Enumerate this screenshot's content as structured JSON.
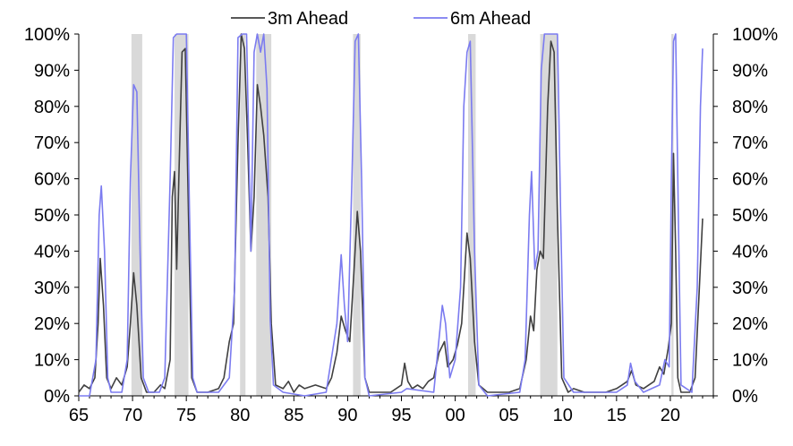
{
  "chart_data": {
    "type": "line",
    "title": "",
    "xlabel": "",
    "ylabel": "",
    "x_ticks": [
      "65",
      "70",
      "75",
      "80",
      "85",
      "90",
      "95",
      "00",
      "05",
      "10",
      "15",
      "20"
    ],
    "x_range_years": [
      1965,
      2024
    ],
    "y_ticks": [
      "0%",
      "10%",
      "20%",
      "30%",
      "40%",
      "50%",
      "60%",
      "70%",
      "80%",
      "90%",
      "100%"
    ],
    "ylim": [
      0,
      100
    ],
    "grid": false,
    "legend_position": "top",
    "recession_periods": [
      [
        1969.9,
        1970.9
      ],
      [
        1973.9,
        1975.2
      ],
      [
        1980.0,
        1980.5
      ],
      [
        1981.5,
        1982.9
      ],
      [
        1990.5,
        1991.2
      ],
      [
        2001.2,
        2001.9
      ],
      [
        2007.9,
        2009.5
      ],
      [
        2020.1,
        2020.3
      ]
    ],
    "series": [
      {
        "name": "3m Ahead",
        "color": "#404040",
        "points": [
          [
            1965.0,
            1
          ],
          [
            1965.5,
            3
          ],
          [
            1966.0,
            2
          ],
          [
            1966.5,
            5
          ],
          [
            1966.8,
            20
          ],
          [
            1967.0,
            38
          ],
          [
            1967.3,
            25
          ],
          [
            1967.6,
            5
          ],
          [
            1968.0,
            2
          ],
          [
            1968.5,
            5
          ],
          [
            1969.0,
            3
          ],
          [
            1969.5,
            8
          ],
          [
            1969.8,
            20
          ],
          [
            1970.1,
            34
          ],
          [
            1970.4,
            25
          ],
          [
            1970.8,
            5
          ],
          [
            1971.3,
            1
          ],
          [
            1972.0,
            1
          ],
          [
            1972.6,
            3
          ],
          [
            1973.0,
            2
          ],
          [
            1973.5,
            10
          ],
          [
            1973.7,
            55
          ],
          [
            1973.9,
            62
          ],
          [
            1974.1,
            35
          ],
          [
            1974.3,
            60
          ],
          [
            1974.6,
            95
          ],
          [
            1974.9,
            96
          ],
          [
            1975.2,
            50
          ],
          [
            1975.5,
            5
          ],
          [
            1976.0,
            1
          ],
          [
            1977.0,
            1
          ],
          [
            1978.0,
            2
          ],
          [
            1978.5,
            5
          ],
          [
            1979.0,
            15
          ],
          [
            1979.4,
            20
          ],
          [
            1979.8,
            70
          ],
          [
            1980.1,
            100
          ],
          [
            1980.4,
            96
          ],
          [
            1980.7,
            70
          ],
          [
            1981.0,
            40
          ],
          [
            1981.3,
            55
          ],
          [
            1981.6,
            86
          ],
          [
            1981.9,
            80
          ],
          [
            1982.2,
            72
          ],
          [
            1982.6,
            55
          ],
          [
            1982.9,
            20
          ],
          [
            1983.3,
            3
          ],
          [
            1984.0,
            2
          ],
          [
            1984.5,
            4
          ],
          [
            1985.0,
            1
          ],
          [
            1985.5,
            3
          ],
          [
            1986.0,
            2
          ],
          [
            1987.0,
            3
          ],
          [
            1988.0,
            2
          ],
          [
            1988.5,
            5
          ],
          [
            1989.0,
            12
          ],
          [
            1989.4,
            22
          ],
          [
            1989.8,
            18
          ],
          [
            1990.2,
            15
          ],
          [
            1990.6,
            35
          ],
          [
            1990.9,
            51
          ],
          [
            1991.2,
            40
          ],
          [
            1991.6,
            5
          ],
          [
            1992.0,
            1
          ],
          [
            1993.0,
            1
          ],
          [
            1994.0,
            1
          ],
          [
            1995.0,
            3
          ],
          [
            1995.3,
            9
          ],
          [
            1995.6,
            4
          ],
          [
            1996.0,
            2
          ],
          [
            1996.5,
            3
          ],
          [
            1997.0,
            2
          ],
          [
            1997.5,
            4
          ],
          [
            1998.0,
            5
          ],
          [
            1998.5,
            12
          ],
          [
            1999.0,
            15
          ],
          [
            1999.3,
            8
          ],
          [
            1999.8,
            10
          ],
          [
            2000.2,
            14
          ],
          [
            2000.6,
            20
          ],
          [
            2000.9,
            35
          ],
          [
            2001.1,
            45
          ],
          [
            2001.4,
            38
          ],
          [
            2001.8,
            15
          ],
          [
            2002.2,
            3
          ],
          [
            2003.0,
            1
          ],
          [
            2004.0,
            1
          ],
          [
            2005.0,
            1
          ],
          [
            2006.0,
            2
          ],
          [
            2006.6,
            10
          ],
          [
            2007.0,
            22
          ],
          [
            2007.3,
            18
          ],
          [
            2007.6,
            35
          ],
          [
            2007.9,
            40
          ],
          [
            2008.2,
            38
          ],
          [
            2008.6,
            80
          ],
          [
            2008.9,
            98
          ],
          [
            2009.2,
            95
          ],
          [
            2009.5,
            50
          ],
          [
            2009.9,
            5
          ],
          [
            2010.5,
            1
          ],
          [
            2011.0,
            2
          ],
          [
            2012.0,
            1
          ],
          [
            2013.0,
            1
          ],
          [
            2014.0,
            1
          ],
          [
            2015.0,
            2
          ],
          [
            2015.5,
            3
          ],
          [
            2016.0,
            4
          ],
          [
            2016.4,
            7
          ],
          [
            2016.8,
            3
          ],
          [
            2017.5,
            2
          ],
          [
            2018.5,
            4
          ],
          [
            2019.0,
            8
          ],
          [
            2019.4,
            6
          ],
          [
            2019.8,
            13
          ],
          [
            2020.1,
            20
          ],
          [
            2020.3,
            67
          ],
          [
            2020.5,
            40
          ],
          [
            2020.7,
            5
          ],
          [
            2021.0,
            1
          ],
          [
            2021.8,
            1
          ],
          [
            2022.3,
            5
          ],
          [
            2022.7,
            30
          ],
          [
            2023.0,
            49
          ]
        ]
      },
      {
        "name": "6m Ahead",
        "color": "#7b7bf0",
        "points": [
          [
            1965.0,
            0
          ],
          [
            1966.0,
            0
          ],
          [
            1966.6,
            10
          ],
          [
            1966.9,
            50
          ],
          [
            1967.1,
            58
          ],
          [
            1967.4,
            40
          ],
          [
            1967.7,
            5
          ],
          [
            1968.0,
            1
          ],
          [
            1969.0,
            1
          ],
          [
            1969.5,
            10
          ],
          [
            1969.8,
            60
          ],
          [
            1970.1,
            86
          ],
          [
            1970.4,
            84
          ],
          [
            1970.7,
            40
          ],
          [
            1971.0,
            5
          ],
          [
            1971.5,
            1
          ],
          [
            1972.5,
            1
          ],
          [
            1973.0,
            5
          ],
          [
            1973.5,
            60
          ],
          [
            1973.8,
            99
          ],
          [
            1974.1,
            100
          ],
          [
            1975.0,
            100
          ],
          [
            1975.3,
            50
          ],
          [
            1975.6,
            5
          ],
          [
            1976.0,
            1
          ],
          [
            1978.0,
            1
          ],
          [
            1979.0,
            5
          ],
          [
            1979.5,
            30
          ],
          [
            1979.8,
            99
          ],
          [
            1980.2,
            100
          ],
          [
            1980.6,
            100
          ],
          [
            1981.0,
            40
          ],
          [
            1981.3,
            95
          ],
          [
            1981.6,
            100
          ],
          [
            1981.9,
            95
          ],
          [
            1982.2,
            100
          ],
          [
            1982.5,
            85
          ],
          [
            1982.8,
            21
          ],
          [
            1983.1,
            3
          ],
          [
            1984.0,
            1
          ],
          [
            1986.0,
            0
          ],
          [
            1988.0,
            1
          ],
          [
            1989.0,
            20
          ],
          [
            1989.4,
            39
          ],
          [
            1989.7,
            25
          ],
          [
            1990.0,
            15
          ],
          [
            1990.4,
            60
          ],
          [
            1990.7,
            98
          ],
          [
            1991.0,
            100
          ],
          [
            1991.3,
            60
          ],
          [
            1991.6,
            5
          ],
          [
            1992.0,
            0
          ],
          [
            1995.0,
            1
          ],
          [
            1995.5,
            2
          ],
          [
            1998.0,
            1
          ],
          [
            1998.8,
            25
          ],
          [
            1999.1,
            20
          ],
          [
            1999.5,
            5
          ],
          [
            2000.0,
            10
          ],
          [
            2000.5,
            30
          ],
          [
            2000.8,
            80
          ],
          [
            2001.1,
            95
          ],
          [
            2001.4,
            98
          ],
          [
            2001.8,
            40
          ],
          [
            2002.2,
            3
          ],
          [
            2003.0,
            0
          ],
          [
            2006.0,
            1
          ],
          [
            2006.5,
            10
          ],
          [
            2006.9,
            50
          ],
          [
            2007.1,
            62
          ],
          [
            2007.4,
            35
          ],
          [
            2007.7,
            40
          ],
          [
            2008.0,
            90
          ],
          [
            2008.3,
            100
          ],
          [
            2009.5,
            100
          ],
          [
            2009.8,
            50
          ],
          [
            2010.1,
            5
          ],
          [
            2011.0,
            1
          ],
          [
            2015.0,
            1
          ],
          [
            2016.0,
            3
          ],
          [
            2016.3,
            9
          ],
          [
            2016.7,
            4
          ],
          [
            2017.5,
            1
          ],
          [
            2019.0,
            3
          ],
          [
            2019.5,
            10
          ],
          [
            2019.9,
            8
          ],
          [
            2020.1,
            60
          ],
          [
            2020.3,
            98
          ],
          [
            2020.5,
            100
          ],
          [
            2020.8,
            40
          ],
          [
            2021.0,
            3
          ],
          [
            2022.0,
            1
          ],
          [
            2022.5,
            30
          ],
          [
            2022.8,
            80
          ],
          [
            2023.0,
            96
          ]
        ]
      }
    ]
  }
}
